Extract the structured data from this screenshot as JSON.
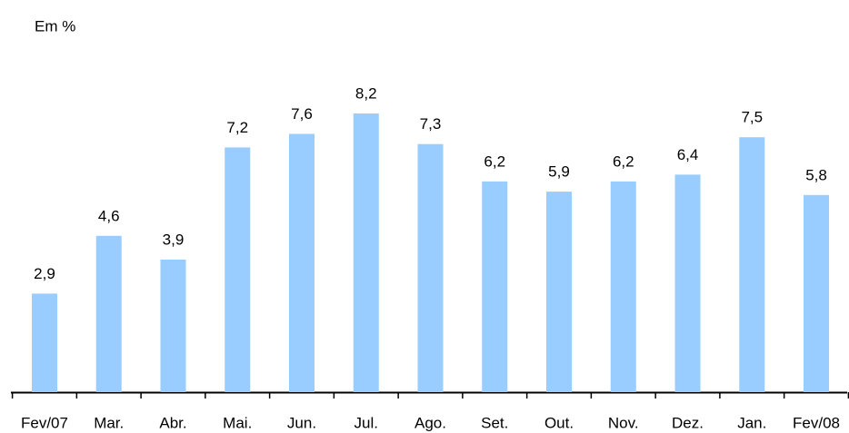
{
  "chart_data": {
    "type": "bar",
    "title": "Em %",
    "categories": [
      "Fev/07",
      "Mar.",
      "Abr.",
      "Mai.",
      "Jun.",
      "Jul.",
      "Ago.",
      "Set.",
      "Out.",
      "Nov.",
      "Dez.",
      "Jan.",
      "Fev/08"
    ],
    "values": [
      2.9,
      4.6,
      3.9,
      7.2,
      7.6,
      8.2,
      7.3,
      6.2,
      5.9,
      6.2,
      6.4,
      7.5,
      5.8
    ],
    "value_labels": [
      "2,9",
      "4,6",
      "3,9",
      "7,2",
      "7,6",
      "8,2",
      "7,3",
      "6,2",
      "5,9",
      "6,2",
      "6,4",
      "7,5",
      "5,8"
    ],
    "color": "#99ccff"
  }
}
